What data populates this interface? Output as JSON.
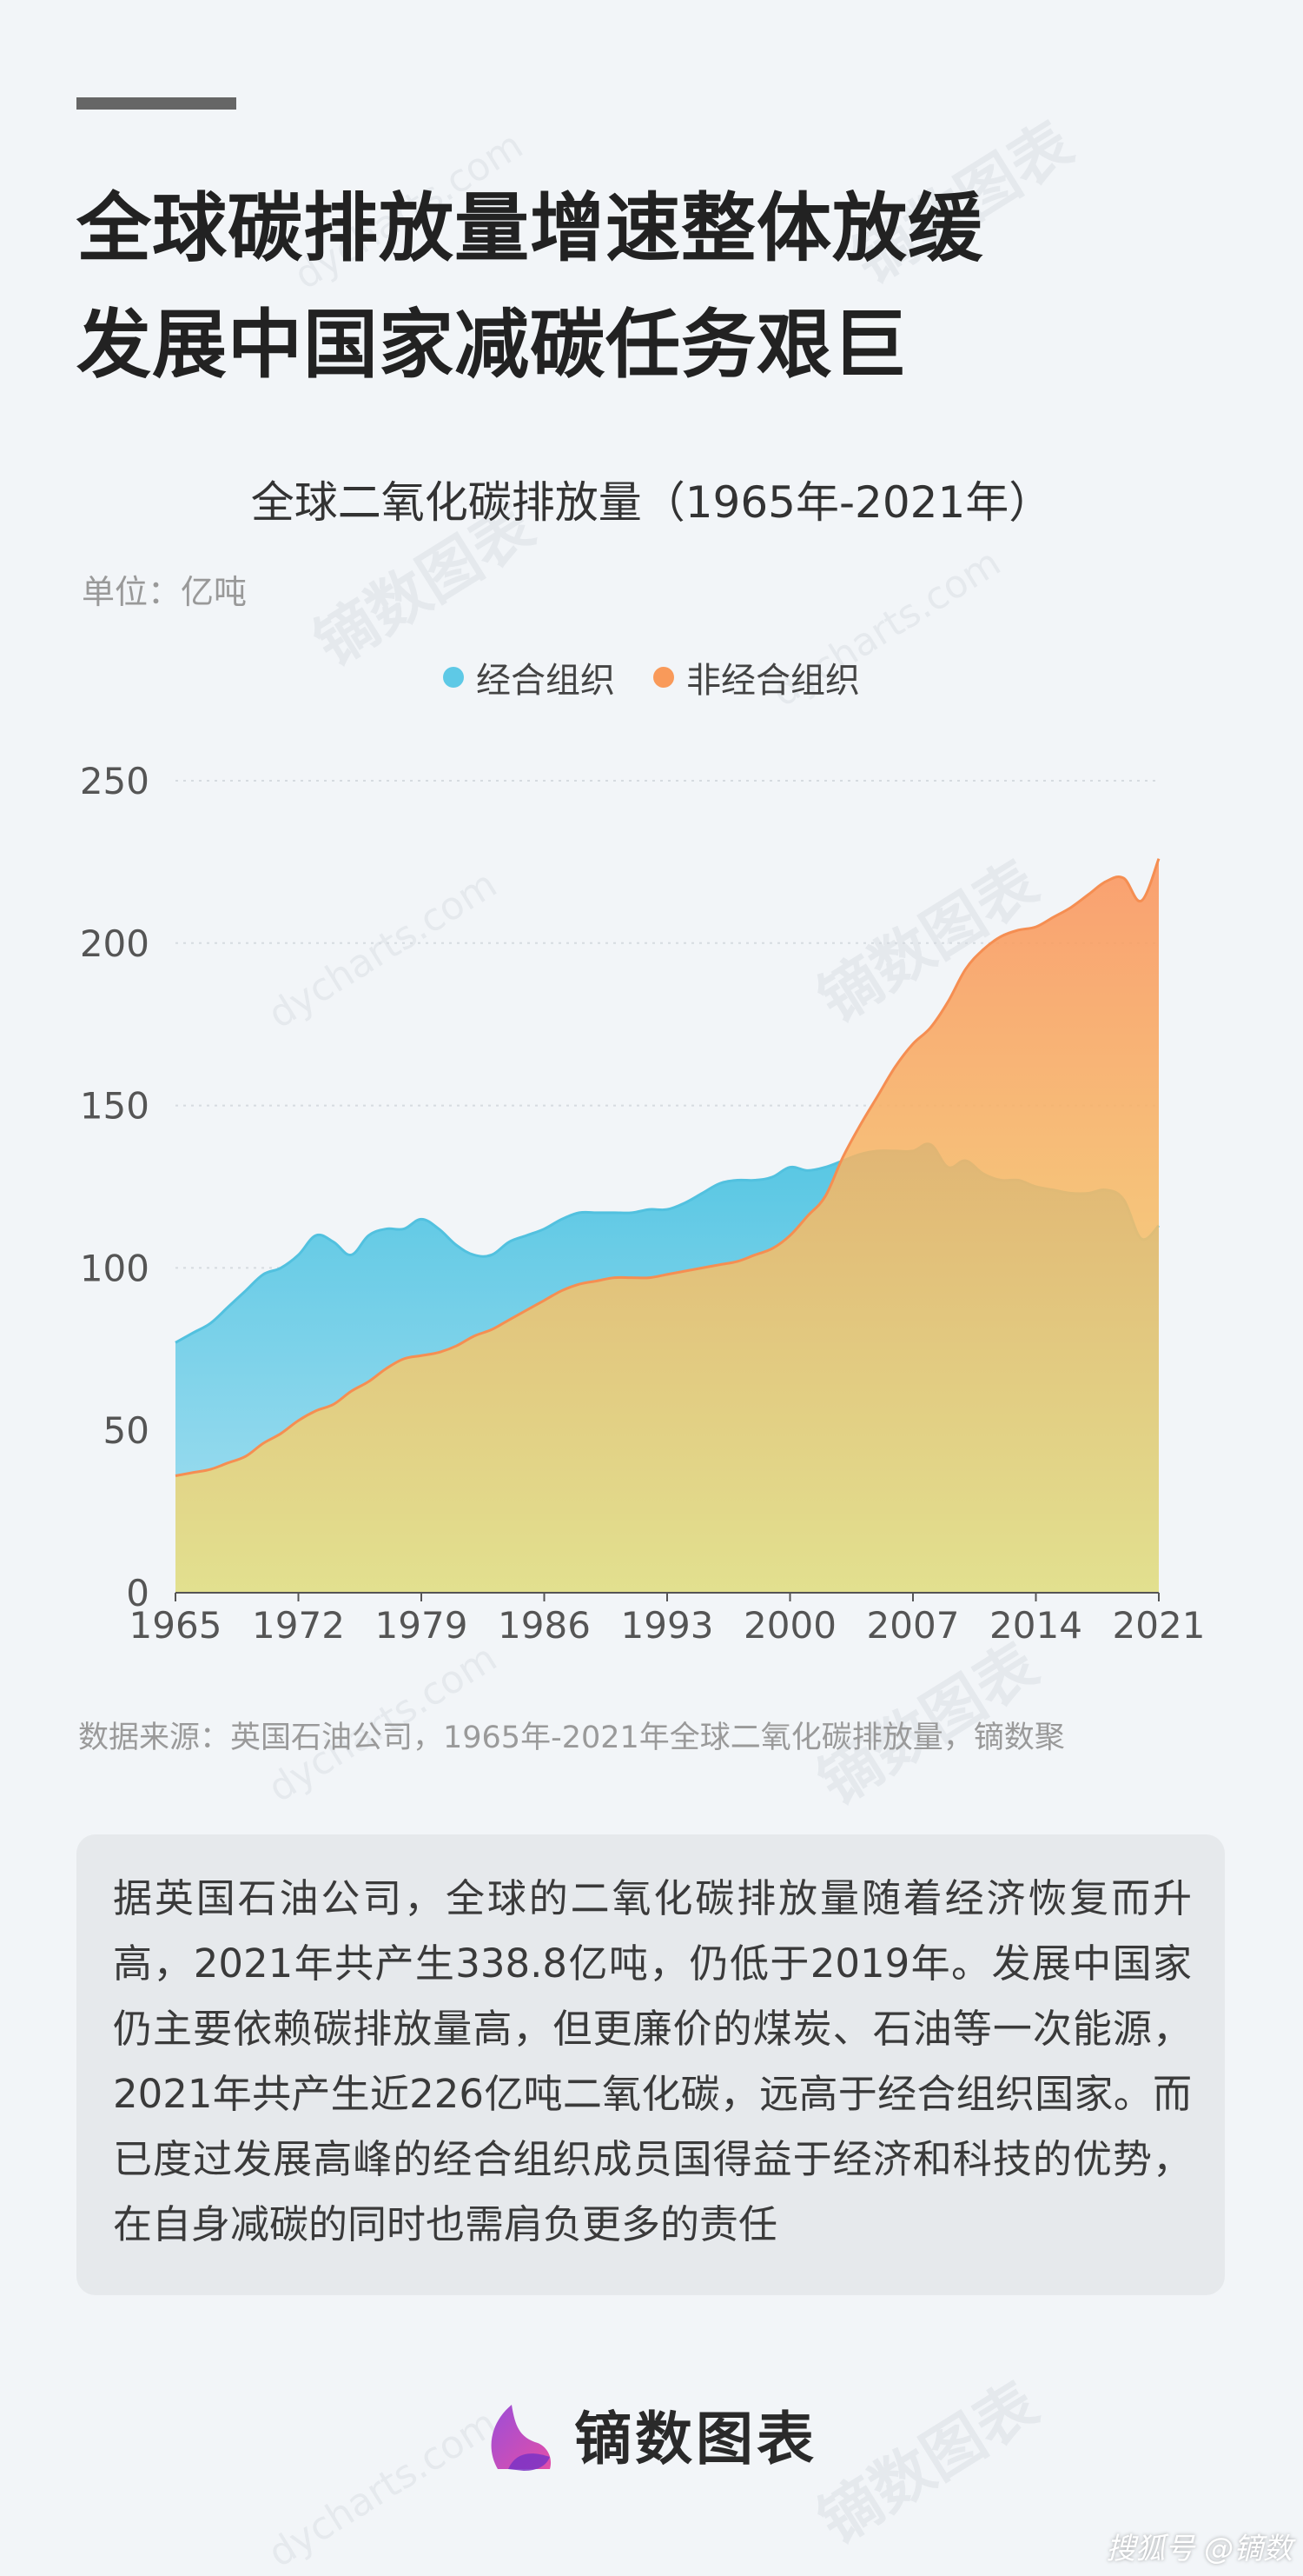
{
  "headline": {
    "line1": "全球碳排放量增速整体放缓",
    "line2": "发展中国家减碳任务艰巨"
  },
  "chart_title": "全球二氧化碳排放量（1965年-2021年）",
  "unit_label": "单位：亿吨",
  "chart_data": {
    "type": "area",
    "title": "全球二氧化碳排放量（1965年-2021年）",
    "ylabel": "单位：亿吨",
    "ylim": [
      0,
      250
    ],
    "yticks": [
      0,
      50,
      100,
      150,
      200,
      250
    ],
    "xticks": [
      1965,
      1972,
      1979,
      1986,
      1993,
      2000,
      2007,
      2014,
      2021
    ],
    "xlim": [
      1965,
      2021
    ],
    "grid": "horizontal-dotted",
    "legend_position": "top-center",
    "x": [
      1965,
      1966,
      1967,
      1968,
      1969,
      1970,
      1971,
      1972,
      1973,
      1974,
      1975,
      1976,
      1977,
      1978,
      1979,
      1980,
      1981,
      1982,
      1983,
      1984,
      1985,
      1986,
      1987,
      1988,
      1989,
      1990,
      1991,
      1992,
      1993,
      1994,
      1995,
      1996,
      1997,
      1998,
      1999,
      2000,
      2001,
      2002,
      2003,
      2004,
      2005,
      2006,
      2007,
      2008,
      2009,
      2010,
      2011,
      2012,
      2013,
      2014,
      2015,
      2016,
      2017,
      2018,
      2019,
      2020,
      2021
    ],
    "series": [
      {
        "name": "经合组织",
        "color": "#5ec9e6",
        "values": [
          77,
          80,
          83,
          88,
          93,
          98,
          100,
          104,
          110,
          108,
          104,
          110,
          112,
          112,
          115,
          112,
          107,
          104,
          104,
          108,
          110,
          112,
          115,
          117,
          117,
          117,
          117,
          118,
          118,
          120,
          123,
          126,
          127,
          127,
          128,
          131,
          130,
          131,
          133,
          135,
          136,
          136,
          136,
          138,
          131,
          133,
          129,
          127,
          127,
          125,
          124,
          123,
          123,
          124,
          121,
          109,
          113
        ]
      },
      {
        "name": "非经合组织",
        "color": "#f99a5a",
        "values": [
          36,
          37,
          38,
          40,
          42,
          46,
          49,
          53,
          56,
          58,
          62,
          65,
          69,
          72,
          73,
          74,
          76,
          79,
          81,
          84,
          87,
          90,
          93,
          95,
          96,
          97,
          97,
          97,
          98,
          99,
          100,
          101,
          102,
          104,
          106,
          110,
          116,
          122,
          134,
          144,
          153,
          162,
          169,
          174,
          182,
          192,
          198,
          202,
          204,
          205,
          208,
          211,
          215,
          219,
          220,
          213,
          226
        ]
      }
    ]
  },
  "source": "数据来源：英国石油公司，1965年-2021年全球二氧化碳排放量，镝数聚",
  "description": "据英国石油公司，全球的二氧化碳排放量随着经济恢复而升高，2021年共产生338.8亿吨，仍低于2019年。发展中国家仍主要依赖碳排放量高，但更廉价的煤炭、石油等一次能源，2021年共产生近226亿吨二氧化碳，远高于经合组织国家。而已度过发展高峰的经合组织成员国得益于经济和科技的优势，在自身减碳的同时也需肩负更多的责任",
  "logo": {
    "text": "镝数图表",
    "icon": "logo-leaf-icon"
  },
  "platform_watermark": "搜狐号 @镝数",
  "watermarks": {
    "cn": "镝数图表",
    "en": "dycharts.com"
  }
}
